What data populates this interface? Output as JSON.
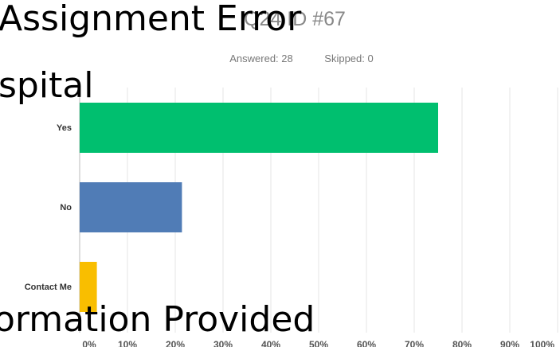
{
  "chart_data": {
    "type": "hbar",
    "title": "Q24 ID #67",
    "subtitle": [
      "Answered: 28",
      "Skipped: 0"
    ],
    "annotations": [
      "Assignment Error",
      "spital",
      "ormation Provided"
    ],
    "categories": [
      "Yes",
      "No",
      "Contact Me"
    ],
    "values": [
      75,
      21.4,
      3.6
    ],
    "colors": [
      "#00bf6f",
      "#507cb6",
      "#f9be00"
    ],
    "xlim": [
      0,
      100
    ],
    "xticks": [
      {
        "value": 0,
        "label": "0%"
      },
      {
        "value": 10,
        "label": "10%"
      },
      {
        "value": 20,
        "label": "20%"
      },
      {
        "value": 30,
        "label": "30%"
      },
      {
        "value": 40,
        "label": "40%"
      },
      {
        "value": 50,
        "label": "50%"
      },
      {
        "value": 60,
        "label": "60%"
      },
      {
        "value": 70,
        "label": "70%"
      },
      {
        "value": 80,
        "label": "80%"
      },
      {
        "value": 90,
        "label": "90%"
      },
      {
        "value": 100,
        "label": "100%"
      }
    ],
    "grid": true
  }
}
